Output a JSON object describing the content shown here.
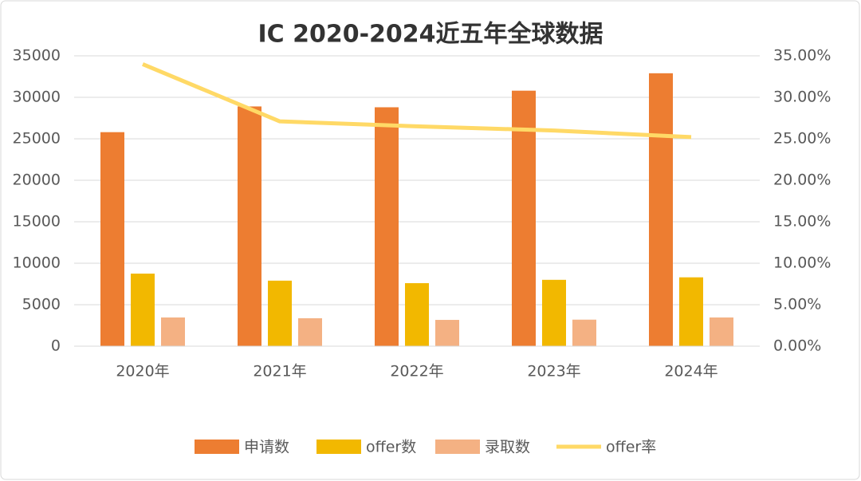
{
  "chart_data": {
    "type": "bar_line",
    "title": "IC 2020-2024近五年全球数据",
    "categories": [
      "2020年",
      "2021年",
      "2022年",
      "2023年",
      "2024年"
    ],
    "series": [
      {
        "name": "申请数",
        "color": "#ED7D31",
        "values": [
          25800,
          28900,
          28800,
          30800,
          32900
        ]
      },
      {
        "name": "offer数",
        "color": "#F2B800",
        "values": [
          8750,
          7900,
          7600,
          8000,
          8300
        ]
      },
      {
        "name": "录取数",
        "color": "#F4B183",
        "values": [
          3460,
          3370,
          3170,
          3200,
          3460
        ]
      },
      {
        "name": "offer率",
        "color": "#FFD966",
        "axis": "y2",
        "values": [
          34.0,
          27.1,
          26.5,
          26.0,
          25.2
        ]
      }
    ],
    "ylim": [
      0,
      35000
    ],
    "yticks": [
      0,
      5000,
      10000,
      15000,
      20000,
      25000,
      30000,
      35000
    ],
    "y2lim": [
      0,
      35
    ],
    "y2ticks": [
      {
        "value": 0,
        "label": "0.00%"
      },
      {
        "value": 5,
        "label": "5.00%"
      },
      {
        "value": 10,
        "label": "10.00%"
      },
      {
        "value": 15,
        "label": "15.00%"
      },
      {
        "value": 20,
        "label": "20.00%"
      },
      {
        "value": 25,
        "label": "25.00%"
      },
      {
        "value": 30,
        "label": "30.00%"
      },
      {
        "value": 35,
        "label": "35.00%"
      }
    ],
    "grid": true,
    "legend": "bottom"
  }
}
